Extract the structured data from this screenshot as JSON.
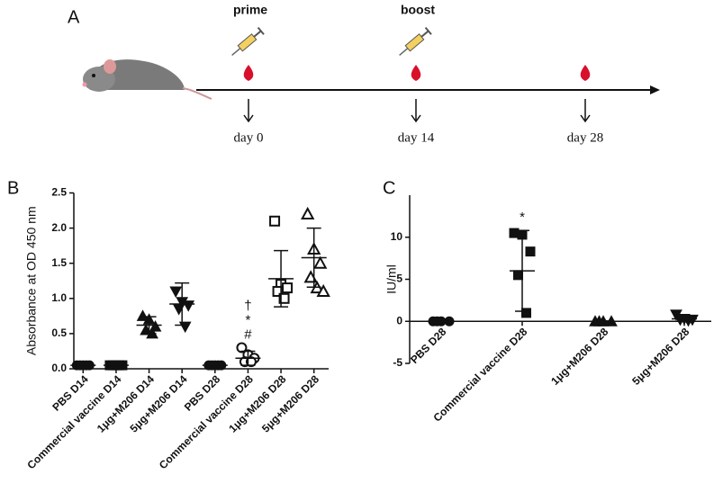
{
  "timeline": {
    "panel": "A",
    "events": [
      {
        "label": "prime",
        "day": "day 0"
      },
      {
        "label": "boost",
        "day": "day 14"
      },
      {
        "day": "day 28"
      }
    ]
  },
  "chart_data": [
    {
      "type": "dotplot",
      "panel": "B",
      "ylabel": "Absorbance at OD 450 nm",
      "categories": [
        "PBS D14",
        "Commercial vaccine D14",
        "1μg+M206 D14",
        "5μg+M206 D14",
        "PBS D28",
        "Commercial vaccine D28",
        "1μg+M206 D28",
        "5μg+M206 D28"
      ],
      "markers": [
        "circle",
        "square",
        "triangle-up",
        "triangle-down",
        "circle",
        "circle-open",
        "square-open",
        "triangle-up-open"
      ],
      "points": [
        [
          0.05,
          0.05,
          0.05,
          0.05,
          0.05
        ],
        [
          0.05,
          0.05,
          0.05,
          0.05,
          0.05
        ],
        [
          0.75,
          0.7,
          0.6,
          0.55,
          0.5
        ],
        [
          1.1,
          0.95,
          0.9,
          0.85,
          0.6
        ],
        [
          0.05,
          0.05,
          0.05,
          0.05,
          0.05
        ],
        [
          0.3,
          0.2,
          0.15,
          0.1,
          0.1
        ],
        [
          2.1,
          1.2,
          1.15,
          1.1,
          1.0
        ],
        [
          2.2,
          1.7,
          1.5,
          1.3,
          1.15,
          1.1
        ]
      ],
      "means": [
        0.05,
        0.05,
        0.62,
        0.92,
        0.05,
        0.15,
        1.28,
        1.58
      ],
      "sds": [
        0.01,
        0.01,
        0.12,
        0.3,
        0.01,
        0.1,
        0.4,
        0.42
      ],
      "annotations": [
        {
          "category": "Commercial vaccine D28",
          "text": "†"
        },
        {
          "category": "Commercial vaccine D28",
          "text": "*"
        },
        {
          "category": "Commercial vaccine D28",
          "text": "#"
        }
      ],
      "ylim": [
        0,
        2.5
      ],
      "yticks": [
        {
          "value": 0,
          "label": "0.0"
        },
        0.5,
        {
          "value": 1,
          "label": "1.0"
        },
        1.5,
        {
          "value": 2,
          "label": "2.0"
        },
        2.5
      ],
      "color": "#111111"
    },
    {
      "type": "dotplot",
      "panel": "C",
      "ylabel": "IU/ml",
      "categories": [
        "PBS D28",
        "Commercial vaccine D28",
        "1μg+M206 D28",
        "5μg+M206 D28"
      ],
      "markers": [
        "circle",
        "square",
        "triangle-up",
        "triangle-down"
      ],
      "points": [
        [
          0,
          0,
          0,
          0
        ],
        [
          10.5,
          10.3,
          8.3,
          5.5,
          1.0
        ],
        [
          0,
          0,
          0,
          0
        ],
        [
          0.8,
          0.3,
          0.2,
          0.2,
          0.1
        ]
      ],
      "means": [
        0,
        6,
        0,
        0.3
      ],
      "sds": [
        0.05,
        4.8,
        0.05,
        0.3
      ],
      "annotations": [
        {
          "category": "Commercial vaccine D28",
          "text": "*"
        }
      ],
      "ylim": [
        -5,
        15
      ],
      "yticks": [
        -5,
        0,
        5,
        10
      ],
      "color": "#111111"
    }
  ]
}
